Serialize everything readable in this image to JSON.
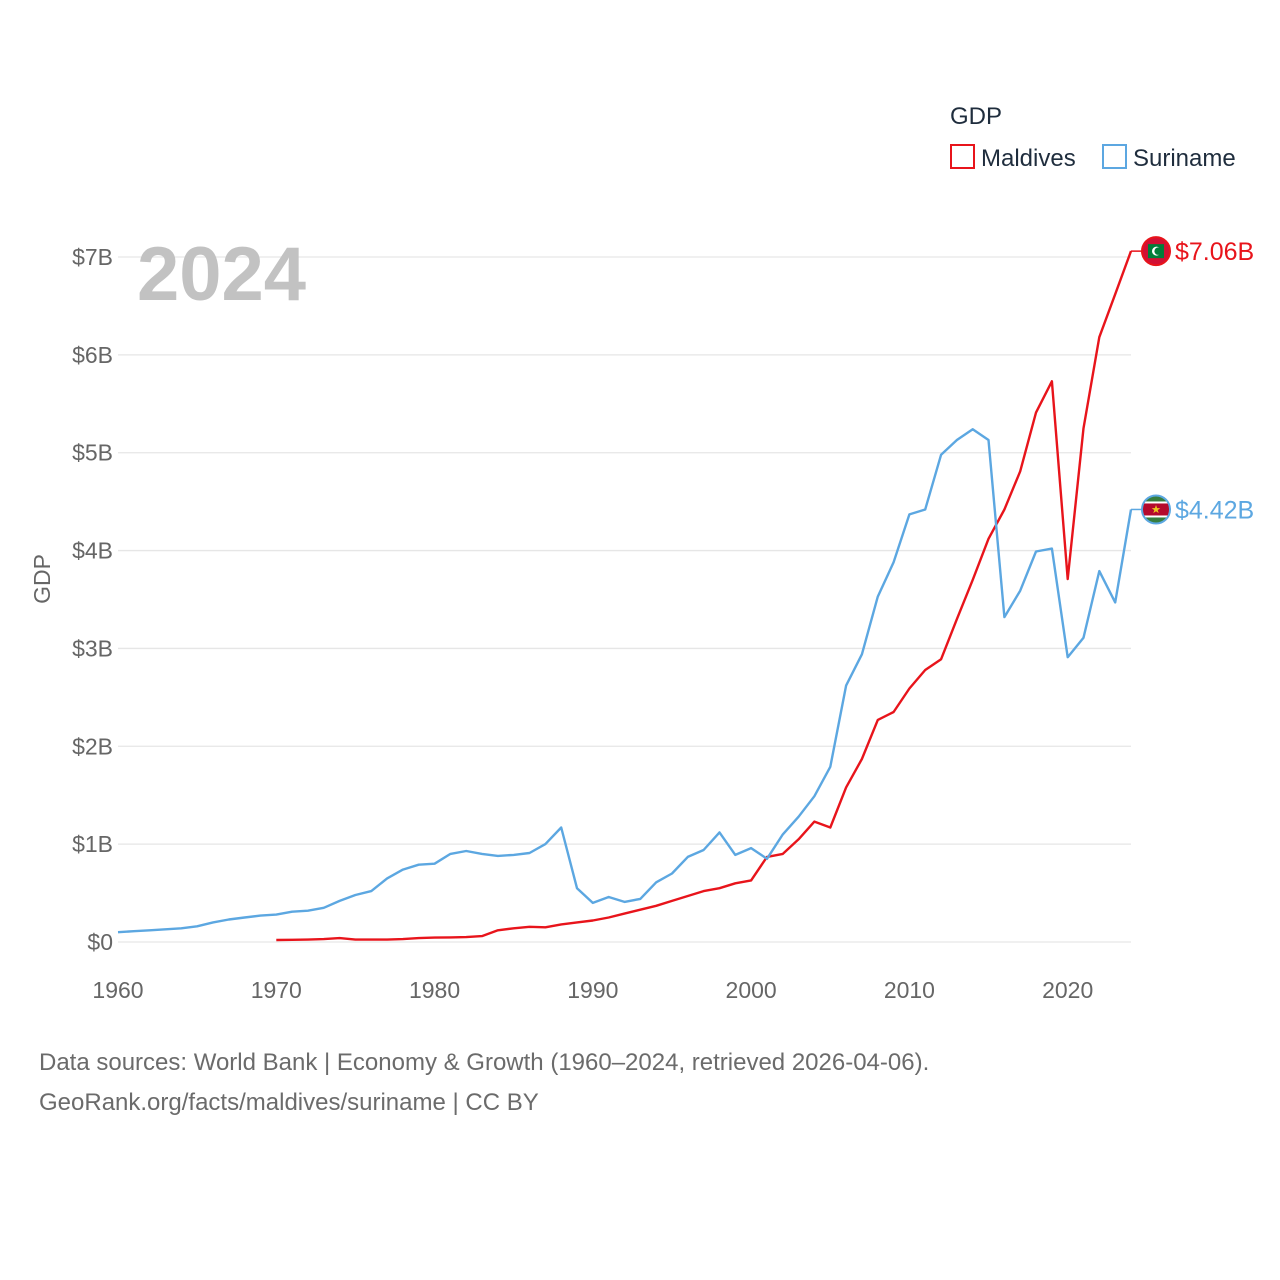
{
  "chart_data": {
    "type": "line",
    "year_label": "2024",
    "ylabel": "GDP",
    "legend_title": "GDP",
    "legend_position": "top-right",
    "xlim": [
      1960,
      2024
    ],
    "ylim": [
      0,
      7
    ],
    "y_ticks": [
      0,
      1,
      2,
      3,
      4,
      5,
      6,
      7
    ],
    "y_tick_labels": [
      "$0",
      "$1B",
      "$2B",
      "$3B",
      "$4B",
      "$5B",
      "$6B",
      "$7B"
    ],
    "x_ticks": [
      1960,
      1970,
      1980,
      1990,
      2000,
      2010,
      2020
    ],
    "x_tick_labels": [
      "1960",
      "1970",
      "1980",
      "1990",
      "2000",
      "2010",
      "2020"
    ],
    "grid": true,
    "series": [
      {
        "name": "Maldives",
        "color": "#e8141b",
        "end_label": "$7.06B",
        "flag_icon": "maldives-flag-icon",
        "x": [
          1970,
          1971,
          1972,
          1973,
          1974,
          1975,
          1976,
          1977,
          1978,
          1979,
          1980,
          1981,
          1982,
          1983,
          1984,
          1985,
          1986,
          1987,
          1988,
          1989,
          1990,
          1991,
          1992,
          1993,
          1994,
          1995,
          1996,
          1997,
          1998,
          1999,
          2000,
          2001,
          2002,
          2003,
          2004,
          2005,
          2006,
          2007,
          2008,
          2009,
          2010,
          2011,
          2012,
          2013,
          2014,
          2015,
          2016,
          2017,
          2018,
          2019,
          2020,
          2021,
          2022,
          2023,
          2024
        ],
        "values": [
          0.02,
          0.022,
          0.025,
          0.03,
          0.04,
          0.025,
          0.025,
          0.025,
          0.03,
          0.04,
          0.045,
          0.047,
          0.05,
          0.06,
          0.12,
          0.14,
          0.155,
          0.15,
          0.18,
          0.2,
          0.22,
          0.25,
          0.29,
          0.33,
          0.37,
          0.42,
          0.47,
          0.52,
          0.55,
          0.6,
          0.63,
          0.87,
          0.9,
          1.05,
          1.23,
          1.17,
          1.58,
          1.87,
          2.27,
          2.35,
          2.59,
          2.78,
          2.89,
          3.3,
          3.7,
          4.12,
          4.42,
          4.81,
          5.41,
          5.73,
          3.71,
          5.25,
          6.18,
          6.62,
          7.06
        ]
      },
      {
        "name": "Suriname",
        "color": "#5ca7e1",
        "end_label": "$4.42B",
        "flag_icon": "suriname-flag-icon",
        "x": [
          1960,
          1961,
          1962,
          1963,
          1964,
          1965,
          1966,
          1967,
          1968,
          1969,
          1970,
          1971,
          1972,
          1973,
          1974,
          1975,
          1976,
          1977,
          1978,
          1979,
          1980,
          1981,
          1982,
          1983,
          1984,
          1985,
          1986,
          1987,
          1988,
          1989,
          1990,
          1991,
          1992,
          1993,
          1994,
          1995,
          1996,
          1997,
          1998,
          1999,
          2000,
          2001,
          2002,
          2003,
          2004,
          2005,
          2006,
          2007,
          2008,
          2009,
          2010,
          2011,
          2012,
          2013,
          2014,
          2015,
          2016,
          2017,
          2018,
          2019,
          2020,
          2021,
          2022,
          2023,
          2024
        ],
        "values": [
          0.1,
          0.11,
          0.12,
          0.13,
          0.14,
          0.16,
          0.2,
          0.23,
          0.25,
          0.27,
          0.28,
          0.31,
          0.32,
          0.35,
          0.42,
          0.48,
          0.52,
          0.65,
          0.74,
          0.79,
          0.8,
          0.9,
          0.93,
          0.9,
          0.88,
          0.89,
          0.91,
          1.0,
          1.17,
          0.55,
          0.4,
          0.46,
          0.41,
          0.44,
          0.61,
          0.7,
          0.87,
          0.94,
          1.12,
          0.89,
          0.96,
          0.85,
          1.1,
          1.28,
          1.49,
          1.79,
          2.62,
          2.94,
          3.53,
          3.88,
          4.37,
          4.42,
          4.98,
          5.13,
          5.24,
          5.13,
          3.32,
          3.59,
          3.99,
          4.02,
          2.91,
          3.11,
          3.79,
          3.47,
          4.42
        ]
      }
    ]
  },
  "footer": {
    "line1": "Data sources: World Bank | Economy & Growth (1960–2024, retrieved 2026-04-06).",
    "line2": "GeoRank.org/facts/maldives/suriname | CC BY"
  }
}
